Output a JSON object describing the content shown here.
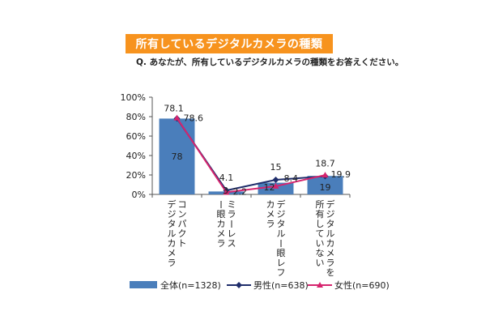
{
  "header": {
    "title": "所有しているデジタルカメラの種類",
    "question": "Q. あなたが、所有しているデジタルカメラの種類をお答えください。"
  },
  "colors": {
    "title_bg": "#f7931e",
    "bar": "#4a7ebb",
    "male": "#1f2d6b",
    "female": "#d6246e"
  },
  "chart_data": {
    "type": "bar",
    "categories": [
      "コンパクト\nデジタルカメラ",
      "ミラーレス\n一眼カメラ",
      "デジタル一眼レフ\nカメラ",
      "デジタルカメラを\n所有していない"
    ],
    "ylim": [
      0,
      100
    ],
    "yticks": [
      "0%",
      "20%",
      "40%",
      "60%",
      "80%",
      "100%"
    ],
    "legend_position": "bottom",
    "series": [
      {
        "name": "全体(n=1328)",
        "kind": "bar",
        "values": [
          78,
          3,
          12,
          19
        ],
        "labels": [
          "78",
          "",
          "12",
          "19"
        ]
      },
      {
        "name": "男性(n=638)",
        "kind": "line",
        "values": [
          78.1,
          4.1,
          15,
          18.7
        ],
        "labels": [
          "78.1",
          "4.1",
          "15",
          "18.7"
        ]
      },
      {
        "name": "女性(n=690)",
        "kind": "line",
        "values": [
          78.6,
          2.2,
          8.4,
          19.9
        ],
        "labels": [
          "78.6",
          "2.2",
          "8.4",
          "19.9"
        ]
      }
    ],
    "extra_labels": [
      "3"
    ]
  }
}
